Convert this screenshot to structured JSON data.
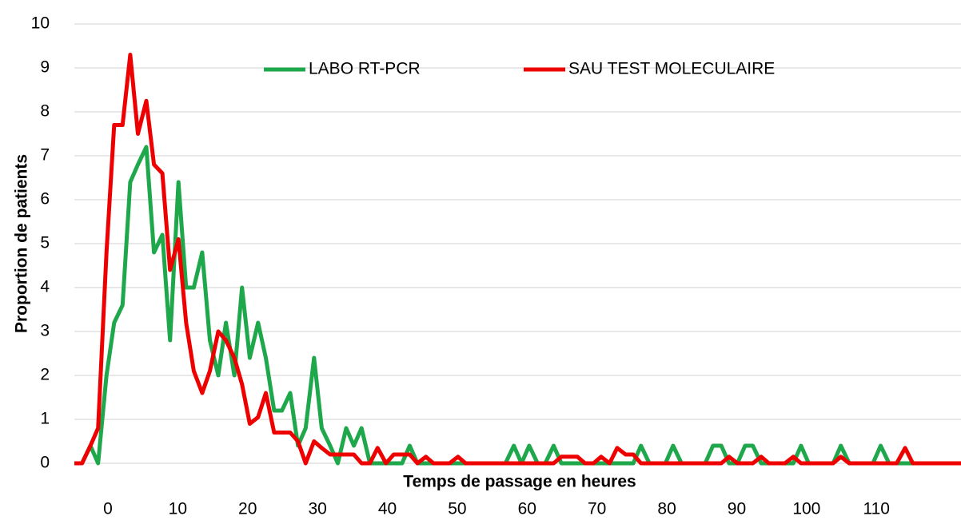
{
  "chart_data": {
    "type": "line",
    "x_label": "Temps de passage en heures",
    "y_label": "Proportion de patients",
    "xlim": [
      -4.8,
      122.1
    ],
    "xticks": [
      0,
      10,
      20,
      30,
      40,
      50,
      60,
      70,
      80,
      90,
      100,
      110
    ],
    "ylim": [
      0,
      10
    ],
    "yticks": [
      0,
      1,
      2,
      3,
      4,
      5,
      6,
      7,
      8,
      9,
      10
    ],
    "grid": true,
    "legend": "top",
    "x": [
      -4.8,
      -3.7,
      -2.5,
      -1.4,
      -0.2,
      0.9,
      2.1,
      3.2,
      4.3,
      5.5,
      6.6,
      7.8,
      8.9,
      10.1,
      11.2,
      12.3,
      13.5,
      14.6,
      15.8,
      16.9,
      18.1,
      19.2,
      20.3,
      21.5,
      22.6,
      23.8,
      24.9,
      26.1,
      27.2,
      28.3,
      29.5,
      30.6,
      31.8,
      32.9,
      34.1,
      35.2,
      36.3,
      37.5,
      38.6,
      39.8,
      40.9,
      42.1,
      43.2,
      44.3,
      45.5,
      46.6,
      47.8,
      48.9,
      50.1,
      51.2,
      52.3,
      53.5,
      54.6,
      55.8,
      56.9,
      58.1,
      59.2,
      60.3,
      61.5,
      62.6,
      63.8,
      64.9,
      66.1,
      67.2,
      68.3,
      69.5,
      70.6,
      71.8,
      72.9,
      74.1,
      75.2,
      76.3,
      77.5,
      78.6,
      79.8,
      80.9,
      82.1,
      83.2,
      84.3,
      85.5,
      86.6,
      87.8,
      88.9,
      90.1,
      91.2,
      92.3,
      93.5,
      94.6,
      95.8,
      96.9,
      98.1,
      99.2,
      100.3,
      101.5,
      102.6,
      103.8,
      104.9,
      106.1,
      107.2,
      108.3,
      109.5,
      110.6,
      111.8,
      112.9,
      114.1,
      115.2,
      116.3,
      117.5,
      118.6,
      119.8,
      120.9,
      122.1
    ],
    "series": [
      {
        "name": "LABO RT-PCR",
        "color": "#1fa74b",
        "values": [
          0,
          0,
          0.4,
          0,
          2,
          3.2,
          3.6,
          6.4,
          6.8,
          7.2,
          4.8,
          5.2,
          2.8,
          6.4,
          4,
          4,
          4.8,
          2.8,
          2,
          3.2,
          2,
          4,
          2.4,
          3.2,
          2.4,
          1.2,
          1.2,
          1.6,
          0.4,
          0.8,
          2.4,
          0.8,
          0.4,
          0,
          0.8,
          0.4,
          0.8,
          0,
          0,
          0,
          0,
          0,
          0.4,
          0,
          0,
          0,
          0,
          0,
          0,
          0,
          0,
          0,
          0,
          0,
          0,
          0.4,
          0,
          0.4,
          0,
          0,
          0.4,
          0,
          0,
          0,
          0,
          0,
          0,
          0,
          0,
          0,
          0,
          0.4,
          0,
          0,
          0,
          0.4,
          0,
          0,
          0,
          0,
          0.4,
          0.4,
          0,
          0,
          0.4,
          0.4,
          0,
          0,
          0,
          0,
          0,
          0.4,
          0,
          0,
          0,
          0,
          0.4,
          0,
          0,
          0,
          0,
          0.4,
          0,
          0,
          0,
          0,
          0,
          0,
          0,
          0,
          0,
          0
        ]
      },
      {
        "name": "SAU TEST MOLECULAIRE",
        "color": "#ee0000",
        "values": [
          0,
          0,
          0.4,
          0.8,
          4.8,
          7.7,
          7.7,
          9.3,
          7.5,
          8.25,
          6.8,
          6.6,
          4.4,
          5.1,
          3.2,
          2.1,
          1.6,
          2.1,
          3,
          2.8,
          2.4,
          1.8,
          0.9,
          1.05,
          1.6,
          0.7,
          0.7,
          0.7,
          0.5,
          0,
          0.5,
          0.35,
          0.2,
          0.2,
          0.2,
          0.2,
          0,
          0,
          0.35,
          0,
          0.2,
          0.2,
          0.2,
          0,
          0.15,
          0,
          0,
          0,
          0.15,
          0,
          0,
          0,
          0,
          0,
          0,
          0,
          0,
          0,
          0,
          0,
          0,
          0.15,
          0.15,
          0.15,
          0,
          0,
          0.15,
          0,
          0.35,
          0.2,
          0.2,
          0,
          0,
          0,
          0,
          0,
          0,
          0,
          0,
          0,
          0,
          0,
          0.15,
          0,
          0,
          0,
          0.15,
          0,
          0,
          0,
          0.15,
          0,
          0,
          0,
          0,
          0,
          0.15,
          0,
          0,
          0,
          0,
          0,
          0,
          0,
          0.35,
          0,
          0,
          0,
          0,
          0,
          0,
          0
        ]
      }
    ]
  }
}
